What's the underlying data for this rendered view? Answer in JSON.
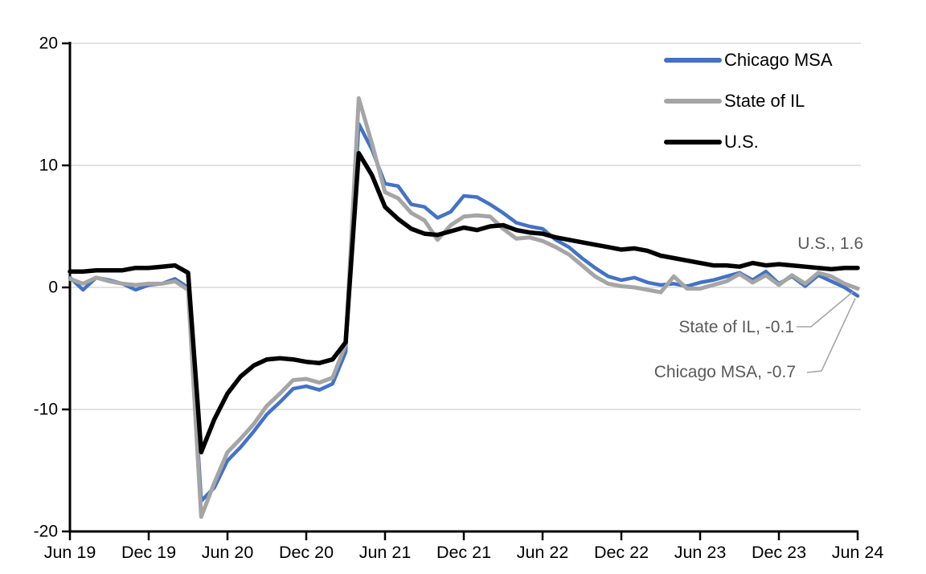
{
  "chart_data": {
    "type": "line",
    "title": "",
    "frequency": "monthly",
    "x_range": [
      "Jun 2019",
      "Jun 2024"
    ],
    "x_tick_labels": [
      "Jun 19",
      "Dec 19",
      "Jun 20",
      "Dec 20",
      "Jun 21",
      "Dec 21",
      "Jun 22",
      "Dec 22",
      "Jun 23",
      "Dec 23",
      "Jun 24"
    ],
    "y_ticks": [
      20,
      10,
      0,
      -10,
      -20
    ],
    "y_tick_labels": [
      "20",
      "10",
      "0",
      "-10",
      "-20"
    ],
    "ylim": [
      -20,
      20
    ],
    "grid": "horizontal",
    "legend_position": "top-right",
    "series": [
      {
        "name": "Chicago MSA",
        "color": "#4472C4",
        "values": [
          0.8,
          -0.2,
          0.8,
          0.6,
          0.3,
          -0.2,
          0.2,
          0.3,
          0.7,
          0.0,
          -17.5,
          -16.4,
          -14.2,
          -13.1,
          -11.8,
          -10.4,
          -9.4,
          -8.3,
          -8.1,
          -8.4,
          -7.9,
          -5.3,
          13.4,
          11.3,
          8.5,
          8.3,
          6.8,
          6.6,
          5.7,
          6.2,
          7.5,
          7.4,
          6.8,
          6.1,
          5.3,
          5.0,
          4.8,
          3.9,
          3.3,
          2.4,
          1.6,
          0.9,
          0.6,
          0.8,
          0.4,
          0.2,
          0.3,
          0.1,
          0.4,
          0.6,
          0.9,
          1.2,
          0.6,
          1.3,
          0.3,
          0.9,
          0.1,
          1.0,
          0.5,
          0.0,
          -0.7
        ]
      },
      {
        "name": "State of IL",
        "color": "#A5A5A5",
        "values": [
          0.7,
          0.3,
          0.8,
          0.5,
          0.3,
          0.2,
          0.3,
          0.3,
          0.5,
          -0.2,
          -18.8,
          -16.0,
          -13.5,
          -12.4,
          -11.2,
          -9.7,
          -8.7,
          -7.6,
          -7.5,
          -7.8,
          -7.4,
          -4.7,
          15.5,
          11.8,
          7.8,
          7.3,
          6.1,
          5.5,
          3.9,
          5.1,
          5.8,
          5.9,
          5.8,
          4.8,
          4.0,
          4.1,
          3.8,
          3.3,
          2.7,
          1.8,
          0.9,
          0.3,
          0.1,
          0.0,
          -0.2,
          -0.4,
          0.9,
          -0.1,
          -0.1,
          0.2,
          0.5,
          1.1,
          0.4,
          1.0,
          0.2,
          1.0,
          0.3,
          1.2,
          0.9,
          0.3,
          -0.1
        ]
      },
      {
        "name": "U.S.",
        "color": "#000000",
        "values": [
          1.3,
          1.3,
          1.4,
          1.4,
          1.4,
          1.6,
          1.6,
          1.7,
          1.8,
          1.2,
          -13.5,
          -10.8,
          -8.7,
          -7.3,
          -6.4,
          -5.9,
          -5.8,
          -5.9,
          -6.1,
          -6.2,
          -5.9,
          -4.5,
          11.0,
          9.2,
          6.6,
          5.6,
          4.8,
          4.4,
          4.3,
          4.6,
          4.9,
          4.7,
          5.0,
          5.1,
          4.7,
          4.5,
          4.4,
          4.1,
          3.9,
          3.7,
          3.5,
          3.3,
          3.1,
          3.2,
          3.0,
          2.6,
          2.4,
          2.2,
          2.0,
          1.8,
          1.8,
          1.7,
          2.0,
          1.8,
          1.9,
          1.8,
          1.7,
          1.6,
          1.5,
          1.6,
          1.6
        ]
      }
    ],
    "annotations": [
      {
        "text": "U.S., 1.6",
        "series": "U.S.",
        "value": 1.6
      },
      {
        "text": "State of IL, -0.1",
        "series": "State of IL",
        "value": -0.1
      },
      {
        "text": "Chicago MSA, -0.7",
        "series": "Chicago MSA",
        "value": -0.7
      }
    ],
    "colors": {
      "gridline": "#D9D9D9",
      "axis": "#000000",
      "annotation_text": "#595959",
      "leader_line": "#A6A6A6"
    }
  }
}
